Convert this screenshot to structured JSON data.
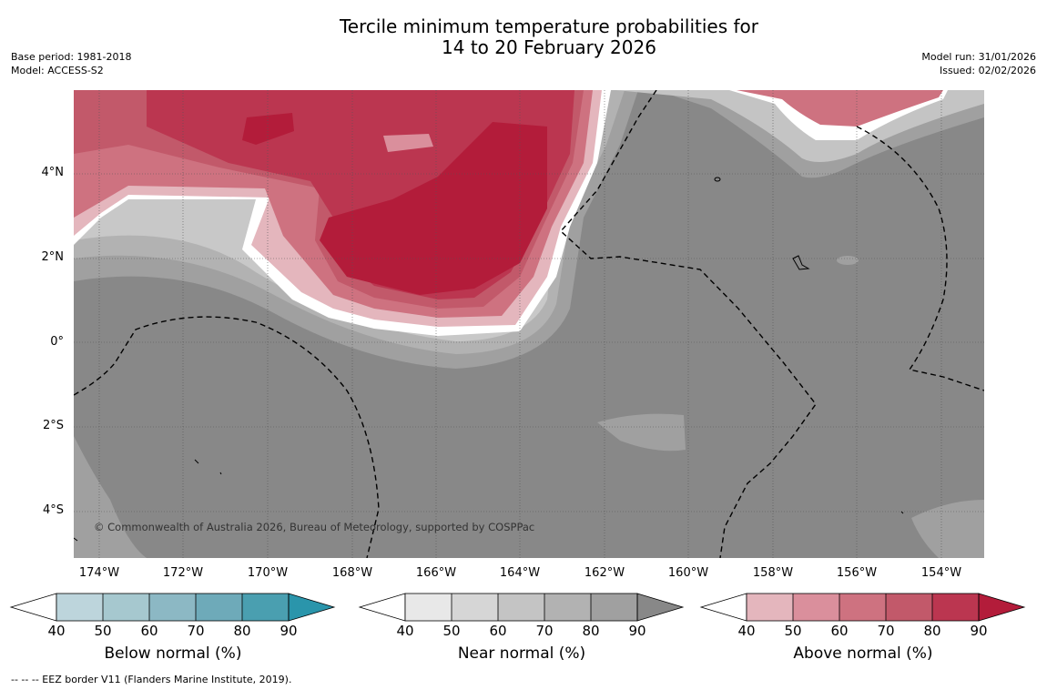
{
  "title": {
    "line1": "Tercile minimum temperature probabilities for",
    "line2": "14 to 20 February 2026"
  },
  "meta_left": {
    "base_period": "Base period: 1981-2018",
    "model": "Model: ACCESS-S2"
  },
  "meta_right": {
    "model_run": "Model run: 31/01/2026",
    "issued": "Issued: 02/02/2026"
  },
  "map": {
    "copyright": "© Commonwealth of Australia 2026, Bureau of Meteorology, supported by COSPPac",
    "lon_ticks": [
      "174°W",
      "172°W",
      "170°W",
      "168°W",
      "166°W",
      "164°W",
      "162°W",
      "160°W",
      "158°W",
      "156°W",
      "154°W"
    ],
    "lat_ticks": [
      "4°N",
      "2°N",
      "0°",
      "2°S",
      "4°S"
    ],
    "gridlines": true,
    "dominant_category": "Near normal",
    "above_normal_region": "north-west and central-north, strongest 80-90% near 165°W 2°N",
    "colors": {
      "near_normal_90": "#888888",
      "above_normal_90": "#b31c3a"
    }
  },
  "colorbars": [
    {
      "label": "Below normal (%)",
      "ticks": [
        "40",
        "50",
        "60",
        "70",
        "80",
        "90"
      ],
      "colors": [
        "#ffffff",
        "#bdd5dc",
        "#a6c8cf",
        "#8cb8c4",
        "#6eaab9",
        "#4a9fb0",
        "#2a95ab"
      ]
    },
    {
      "label": "Near normal (%)",
      "ticks": [
        "40",
        "50",
        "60",
        "70",
        "80",
        "90"
      ],
      "colors": [
        "#ffffff",
        "#e8e8e8",
        "#d6d6d6",
        "#c4c4c4",
        "#b2b2b2",
        "#a0a0a0",
        "#888888"
      ]
    },
    {
      "label": "Above normal (%)",
      "ticks": [
        "40",
        "50",
        "60",
        "70",
        "80",
        "90"
      ],
      "colors": [
        "#ffffff",
        "#e4b6bd",
        "#da8f9c",
        "#ce7280",
        "#c2596a",
        "#bb3650",
        "#b31c3a"
      ]
    }
  ],
  "footer": "--  --  -- EEZ border V11 (Flanders Marine Institute, 2019)."
}
